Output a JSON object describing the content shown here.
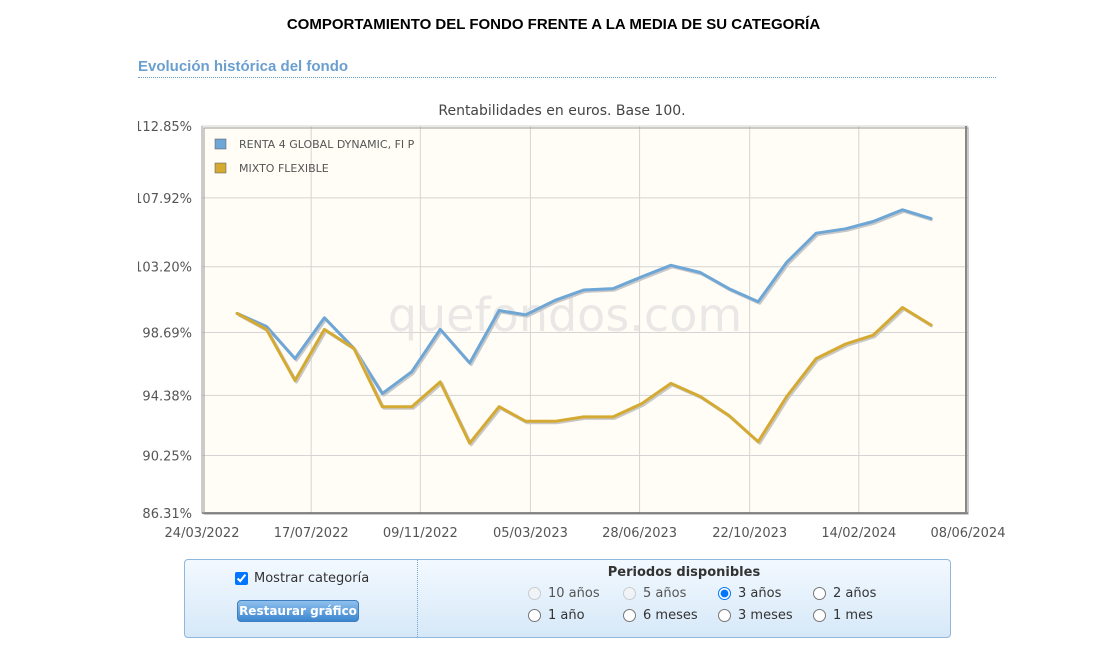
{
  "header": {
    "main_title": "COMPORTAMIENTO DEL FONDO FRENTE A LA MEDIA DE SU CATEGORÍA",
    "section_title": "Evolución histórica del fondo"
  },
  "chart_data": {
    "type": "line",
    "title": "Rentabilidades en euros. Base 100.",
    "watermark": "quefondos.com",
    "xlabel": "",
    "ylabel": "",
    "ylim": [
      86.31,
      112.85
    ],
    "xlim": [
      "2022-03-24",
      "2024-06-08"
    ],
    "y_ticks": [
      "112.85%",
      "107.92%",
      "103.20%",
      "98.69%",
      "94.38%",
      "90.25%",
      "86.31%"
    ],
    "y_tick_values": [
      112.85,
      107.92,
      103.2,
      98.69,
      94.38,
      90.25,
      86.31
    ],
    "x_ticks": [
      "24/03/2022",
      "17/07/2022",
      "09/11/2022",
      "05/03/2023",
      "28/06/2023",
      "22/10/2023",
      "14/02/2024",
      "08/06/2024"
    ],
    "x_tick_dates": [
      "2022-03-24",
      "2022-07-17",
      "2022-11-09",
      "2023-03-05",
      "2023-06-28",
      "2023-10-22",
      "2024-02-14",
      "2024-06-08"
    ],
    "grid": true,
    "legend_position": "top-left",
    "x": [
      "2022-04-30",
      "2022-05-31",
      "2022-06-30",
      "2022-07-31",
      "2022-08-31",
      "2022-09-30",
      "2022-10-31",
      "2022-11-30",
      "2022-12-31",
      "2023-01-31",
      "2023-02-28",
      "2023-03-31",
      "2023-04-30",
      "2023-05-31",
      "2023-06-30",
      "2023-07-31",
      "2023-08-31",
      "2023-09-30",
      "2023-10-31",
      "2023-11-30",
      "2023-12-31",
      "2024-01-31",
      "2024-02-29",
      "2024-03-31",
      "2024-04-30"
    ],
    "series": [
      {
        "name": "RENTA 4 GLOBAL DYNAMIC, FI P",
        "color": "#6ea6d6",
        "values": [
          100.0,
          99.1,
          96.9,
          99.7,
          97.6,
          94.5,
          96.0,
          98.9,
          96.6,
          100.2,
          99.9,
          100.9,
          101.6,
          101.7,
          102.5,
          103.3,
          102.8,
          101.7,
          100.8,
          103.5,
          105.5,
          105.8,
          106.3,
          107.1,
          106.5
        ]
      },
      {
        "name": "MIXTO FLEXIBLE",
        "color": "#d4aa33",
        "values": [
          100.0,
          98.9,
          95.4,
          98.9,
          97.6,
          93.6,
          93.6,
          95.3,
          91.1,
          93.6,
          92.6,
          92.6,
          92.9,
          92.9,
          93.8,
          95.2,
          94.3,
          93.0,
          91.2,
          94.3,
          96.9,
          97.9,
          98.5,
          100.4,
          99.2
        ]
      }
    ]
  },
  "controls": {
    "mostrar_categoria_label": "Mostrar categoría",
    "mostrar_categoria_checked": true,
    "restore_button_label": "Restaurar gráfico",
    "periodos_title": "Periodos disponibles",
    "periods": [
      {
        "label": "10 años",
        "enabled": false,
        "selected": false
      },
      {
        "label": "5 años",
        "enabled": false,
        "selected": false
      },
      {
        "label": "3 años",
        "enabled": true,
        "selected": true
      },
      {
        "label": "2 años",
        "enabled": true,
        "selected": false
      },
      {
        "label": "1 año",
        "enabled": true,
        "selected": false
      },
      {
        "label": "6 meses",
        "enabled": true,
        "selected": false
      },
      {
        "label": "3 meses",
        "enabled": true,
        "selected": false
      },
      {
        "label": "1 mes",
        "enabled": true,
        "selected": false
      }
    ]
  }
}
